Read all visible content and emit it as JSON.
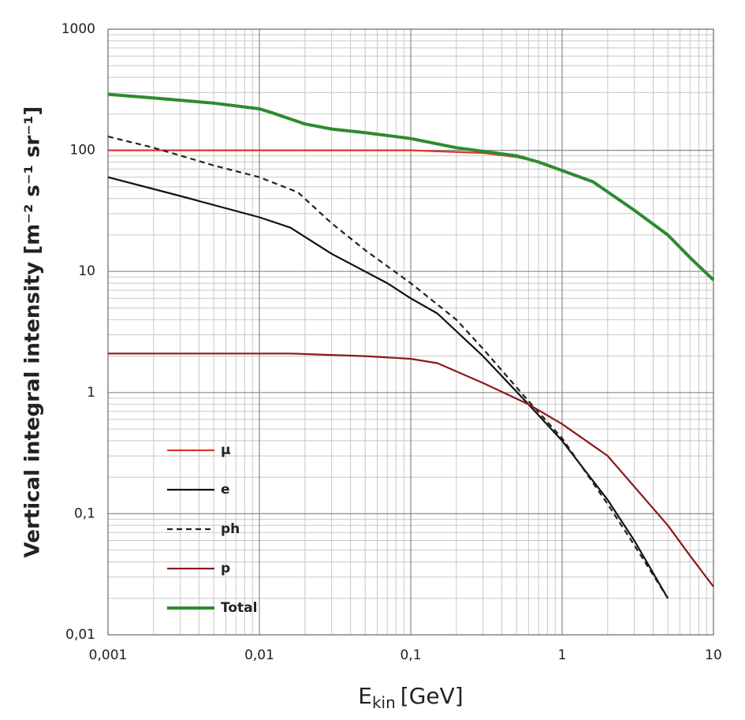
{
  "chart_data": {
    "type": "line",
    "x_label": "E",
    "x_label_sub": "kin",
    "x_label_unit": "[GeV]",
    "y_label": "Vertical integral intensity [m⁻² s⁻¹ sr⁻¹]",
    "xscale": "log",
    "yscale": "log",
    "grid": true,
    "legend": "lower-left",
    "xlim": [
      0.001,
      10
    ],
    "ylim": [
      0.01,
      1000
    ],
    "xticks": [
      {
        "value": 0.001,
        "label": "0,001"
      },
      {
        "value": 0.01,
        "label": "0,01"
      },
      {
        "value": 0.1,
        "label": "0,1"
      },
      1,
      10
    ],
    "yticks": [
      {
        "value": 0.01,
        "label": "0,01"
      },
      {
        "value": 0.1,
        "label": "0,1"
      },
      1,
      10,
      100,
      1000
    ],
    "series": [
      {
        "name": "μ",
        "color": "#e3342b",
        "dash": false,
        "x": [
          0.001,
          0.01,
          0.1,
          0.3,
          0.5,
          0.7,
          1,
          1.6
        ],
        "values": [
          100,
          100,
          100,
          95,
          88,
          80,
          68,
          55
        ]
      },
      {
        "name": "e",
        "color": "#111111",
        "dash": false,
        "x": [
          0.001,
          0.003,
          0.01,
          0.016,
          0.03,
          0.07,
          0.1,
          0.15,
          0.3,
          0.6,
          1,
          2,
          3,
          5
        ],
        "values": [
          60,
          42,
          28,
          23,
          14,
          8,
          6,
          4.5,
          2,
          0.8,
          0.4,
          0.13,
          0.06,
          0.02
        ]
      },
      {
        "name": "ph",
        "color": "#222222",
        "dash": true,
        "x": [
          0.001,
          0.002,
          0.005,
          0.01,
          0.018,
          0.03,
          0.05,
          0.1,
          0.2,
          0.3,
          0.6,
          1,
          2,
          3,
          5
        ],
        "values": [
          130,
          105,
          75,
          60,
          45,
          25,
          15,
          8,
          4,
          2.3,
          0.85,
          0.42,
          0.12,
          0.055,
          0.02
        ]
      },
      {
        "name": "p",
        "color": "#8b1a1a",
        "dash": false,
        "x": [
          0.001,
          0.01,
          0.016,
          0.05,
          0.1,
          0.15,
          0.3,
          0.6,
          1,
          2,
          5,
          7,
          10
        ],
        "values": [
          2.1,
          2.1,
          2.1,
          2.0,
          1.9,
          1.75,
          1.2,
          0.8,
          0.55,
          0.3,
          0.08,
          0.045,
          0.025
        ]
      },
      {
        "name": "Total",
        "color": "#2e8b2e",
        "dash": false,
        "x": [
          0.001,
          0.002,
          0.005,
          0.01,
          0.012,
          0.02,
          0.03,
          0.05,
          0.1,
          0.2,
          0.3,
          0.5,
          0.7,
          1,
          1.6,
          3,
          5,
          7,
          10
        ],
        "values": [
          290,
          270,
          245,
          220,
          205,
          165,
          150,
          140,
          125,
          105,
          98,
          90,
          80,
          68,
          55,
          32,
          20,
          13,
          8.5
        ]
      }
    ]
  }
}
